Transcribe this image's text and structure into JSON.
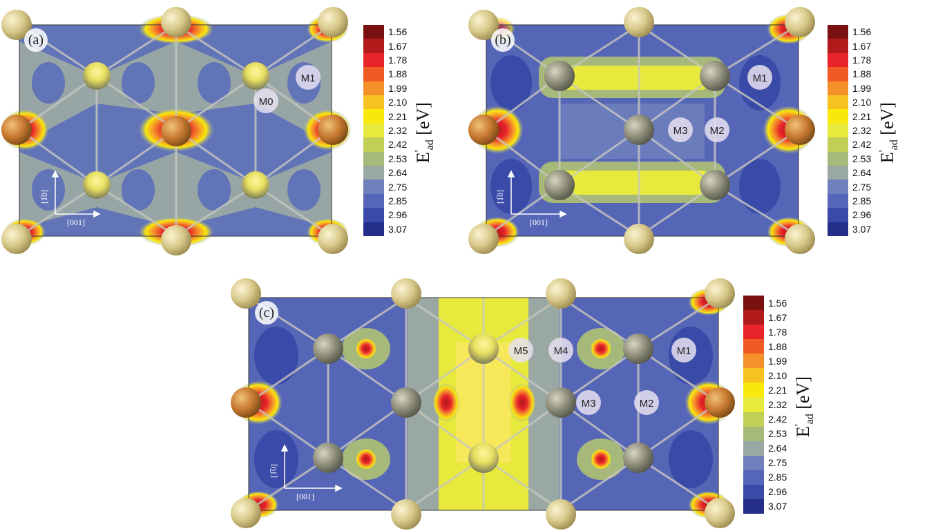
{
  "colorbar": {
    "ticks": [
      "1.56",
      "1.67",
      "1.78",
      "1.88",
      "1.99",
      "2.10",
      "2.21",
      "2.32",
      "2.42",
      "2.53",
      "2.64",
      "2.75",
      "2.85",
      "2.96",
      "3.07"
    ],
    "colors": [
      "#7a1010",
      "#b01a1a",
      "#e8242a",
      "#f05a24",
      "#f4912a",
      "#f7c21f",
      "#fae80c",
      "#e7ea3c",
      "#c2cf56",
      "#a6b87a",
      "#9aa8a4",
      "#7080bc",
      "#5565b8",
      "#3a4aa8",
      "#252f8a"
    ],
    "title_main": "E",
    "title_sup": "'",
    "title_sub": "ad",
    "unit": "[eV]"
  },
  "panels": {
    "a": {
      "label": "(a)",
      "sites": [
        "M0",
        "M1"
      ]
    },
    "b": {
      "label": "(b)",
      "sites": [
        "M1",
        "M2",
        "M3"
      ]
    },
    "c": {
      "label": "(c)",
      "sites": [
        "M1",
        "M2",
        "M3",
        "M4",
        "M5"
      ]
    }
  },
  "axes": {
    "vertical": "[1̅0]",
    "horizontal": "[001]"
  }
}
